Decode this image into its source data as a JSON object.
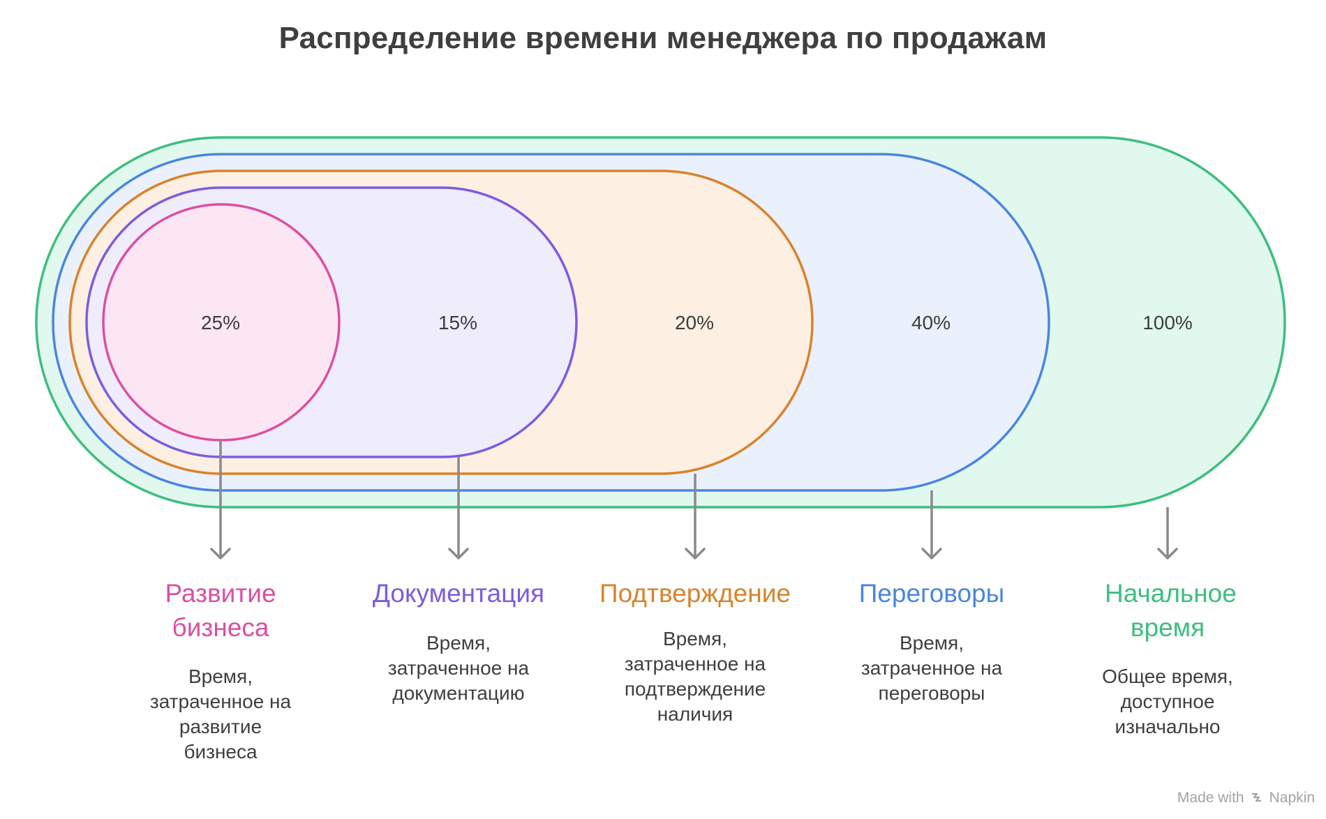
{
  "title": "Распределение времени менеджера по продажам",
  "colors": {
    "pink": "#dd4fa0",
    "purple": "#7b5ce0",
    "orange": "#d9822b",
    "blue": "#4a86e0",
    "green": "#3cbf7e",
    "text": "#3f3f3f",
    "arrow": "#8a8a8a"
  },
  "sections": [
    {
      "id": "business",
      "percent": "25%",
      "title": "Развитие бизнеса",
      "description": "Время, затраченное на развитие бизнеса",
      "color": "#dd4fa0",
      "fill": "#fde6f3"
    },
    {
      "id": "documentation",
      "percent": "15%",
      "title": "Документация",
      "description": "Время, затраченное на документацию",
      "color": "#7b5ce0",
      "fill": "#efecfb"
    },
    {
      "id": "confirmation",
      "percent": "20%",
      "title": "Подтверждение",
      "description": "Время, затраченное на подтверждение наличия",
      "color": "#d9822b",
      "fill": "#fdefe2"
    },
    {
      "id": "negotiation",
      "percent": "40%",
      "title": "Переговоры",
      "description": "Время, затраченное на переговоры",
      "color": "#4a86e0",
      "fill": "#eaf1fd"
    },
    {
      "id": "initial",
      "percent": "100%",
      "title": "Начальное время",
      "description": "Общее время, доступное изначально",
      "color": "#3cbf7e",
      "fill": "#e1f8ee"
    }
  ],
  "footer": {
    "made_with": "Made with",
    "brand": "Napkin"
  }
}
